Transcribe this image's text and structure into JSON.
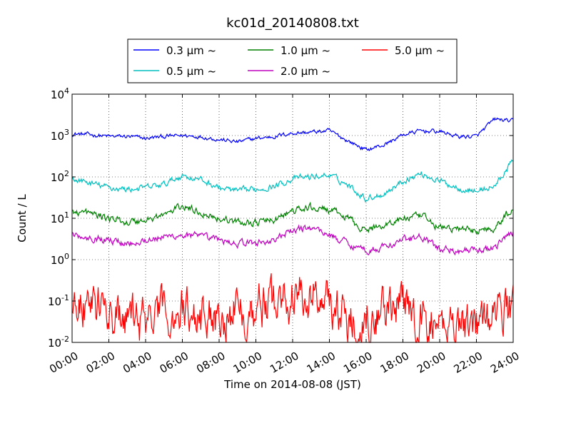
{
  "chart_data": {
    "type": "line",
    "title": "kc01d_20140808.txt",
    "xlabel": "Time on 2014-08-08 (JST)",
    "ylabel": "Count / L",
    "yscale": "log",
    "xlim": [
      "00:00",
      "24:00"
    ],
    "ylim": [
      0.01,
      10000
    ],
    "grid": true,
    "legend_position": "top-center",
    "xticks": [
      "00:00",
      "02:00",
      "04:00",
      "06:00",
      "08:00",
      "10:00",
      "12:00",
      "14:00",
      "16:00",
      "18:00",
      "20:00",
      "22:00",
      "24:00"
    ],
    "yticks": [
      {
        "base": "10",
        "exp": "-2",
        "value": 0.01
      },
      {
        "base": "10",
        "exp": "-1",
        "value": 0.1
      },
      {
        "base": "10",
        "exp": "0",
        "value": 1
      },
      {
        "base": "10",
        "exp": "1",
        "value": 10
      },
      {
        "base": "10",
        "exp": "2",
        "value": 100
      },
      {
        "base": "10",
        "exp": "3",
        "value": 1000
      },
      {
        "base": "10",
        "exp": "4",
        "value": 10000
      }
    ],
    "x_hours": [
      0,
      1,
      2,
      3,
      4,
      5,
      6,
      7,
      8,
      9,
      10,
      11,
      12,
      13,
      14,
      15,
      16,
      17,
      18,
      19,
      20,
      21,
      22,
      23,
      24
    ],
    "series": [
      {
        "name": "0.3 μm ~",
        "color": "#0000ff",
        "noise": 0.04,
        "values": [
          1100,
          1050,
          950,
          950,
          850,
          950,
          1000,
          950,
          800,
          700,
          850,
          950,
          1150,
          1200,
          1300,
          750,
          450,
          600,
          1050,
          1300,
          1250,
          950,
          950,
          2500,
          2200
        ]
      },
      {
        "name": "0.5 μm ~",
        "color": "#00bfbf",
        "noise": 0.06,
        "values": [
          90,
          70,
          55,
          50,
          55,
          65,
          110,
          85,
          55,
          45,
          50,
          60,
          90,
          100,
          110,
          65,
          30,
          40,
          80,
          120,
          80,
          55,
          45,
          60,
          250
        ]
      },
      {
        "name": "1.0 μm ~",
        "color": "#008000",
        "noise": 0.07,
        "values": [
          15,
          13,
          10,
          8,
          9,
          12,
          20,
          14,
          10,
          8,
          8,
          9,
          15,
          18,
          16,
          10,
          5,
          7,
          10,
          11,
          6,
          5.5,
          5,
          6,
          18
        ]
      },
      {
        "name": "2.0 μm ~",
        "color": "#bf00bf",
        "noise": 0.07,
        "values": [
          4,
          3.5,
          3,
          2.5,
          3,
          3.5,
          4,
          3.5,
          3,
          2.5,
          2.5,
          3,
          5,
          6,
          4,
          2.5,
          1.7,
          2,
          3,
          3.5,
          1.8,
          1.7,
          1.6,
          2,
          5
        ]
      },
      {
        "name": "5.0 μm ~",
        "color": "#ff0000",
        "noise": 0.45,
        "values": [
          0.08,
          0.1,
          0.05,
          0.03,
          0.035,
          0.05,
          0.06,
          0.045,
          0.05,
          0.06,
          0.07,
          0.1,
          0.13,
          0.15,
          0.11,
          0.03,
          0.05,
          0.06,
          0.07,
          0.03,
          0.025,
          0.035,
          0.03,
          0.04,
          0.08
        ]
      }
    ]
  }
}
